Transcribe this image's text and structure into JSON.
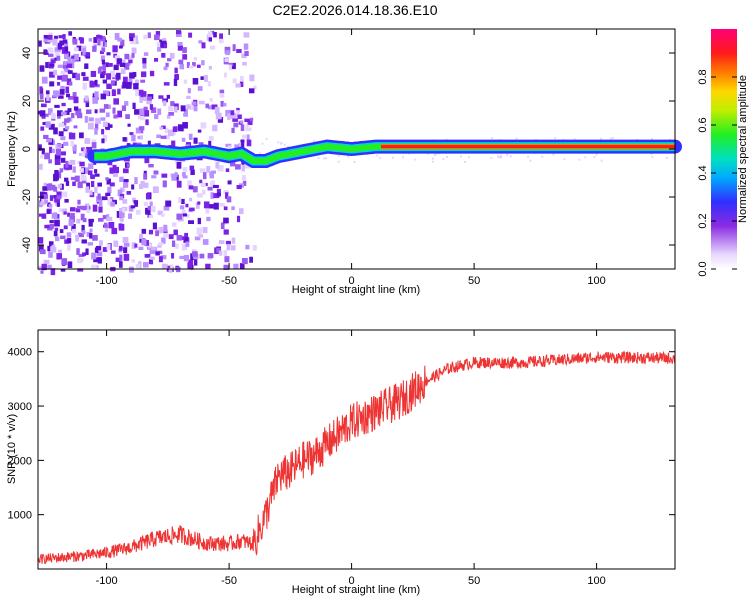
{
  "chart_data": [
    {
      "type": "heatmap",
      "title": "C2E2.2026.014.18.36.E10",
      "xlabel": "Height of straight line (km)",
      "ylabel": "Frequency (Hz)",
      "xlim": [
        -128,
        132
      ],
      "ylim": [
        -50,
        50
      ],
      "xticks": [
        -100,
        -50,
        0,
        50,
        100
      ],
      "xtick_labels": [
        "-100",
        "-50",
        "0",
        "50",
        "100"
      ],
      "yticks": [
        -40,
        -20,
        0,
        20,
        40
      ],
      "ytick_labels": [
        "-40",
        "-20",
        "0",
        "20",
        "40"
      ],
      "colorbar": {
        "label": "Normalized spectral amplitude",
        "range": [
          0,
          1
        ],
        "ticks": [
          0.0,
          0.2,
          0.4,
          0.6,
          0.8
        ],
        "tick_labels": [
          "0.0",
          "0.2",
          "0.4",
          "0.6",
          "0.8"
        ]
      },
      "ridge": {
        "description_points_x": [
          -100,
          -90,
          -80,
          -70,
          -60,
          -50,
          -45,
          -40,
          -35,
          -30,
          -25,
          -20,
          -15,
          -10,
          0,
          10,
          50,
          100,
          132
        ],
        "description_points_y": [
          -3,
          -1,
          -1,
          -2,
          -1,
          -3,
          -2,
          -5,
          -5,
          -3,
          -2,
          -1,
          0,
          1,
          0,
          1,
          1,
          1,
          1
        ]
      },
      "noise_region_x": [
        -128,
        -40
      ]
    },
    {
      "type": "line",
      "title": "",
      "xlabel": "Height of straight line (km)",
      "ylabel": "SNR (10 * v/v)",
      "xlim": [
        -128,
        132
      ],
      "ylim": [
        0,
        4400
      ],
      "xticks": [
        -100,
        -50,
        0,
        50,
        100
      ],
      "xtick_labels": [
        "-100",
        "-50",
        "0",
        "50",
        "100"
      ],
      "yticks": [
        1000,
        2000,
        3000,
        4000
      ],
      "ytick_labels": [
        "1000",
        "2000",
        "3000",
        "4000"
      ],
      "series": [
        {
          "name": "SNR",
          "color": "#ee3333",
          "trend_x": [
            -128,
            -110,
            -100,
            -90,
            -80,
            -70,
            -60,
            -50,
            -45,
            -40,
            -35,
            -30,
            -25,
            -20,
            -15,
            -10,
            -5,
            0,
            10,
            20,
            30,
            40,
            50,
            70,
            100,
            132
          ],
          "trend_y": [
            180,
            240,
            300,
            400,
            560,
            640,
            480,
            460,
            520,
            460,
            1000,
            1700,
            1800,
            2000,
            2100,
            2300,
            2500,
            2700,
            2900,
            3100,
            3450,
            3700,
            3800,
            3800,
            3900,
            3880
          ]
        }
      ]
    }
  ],
  "colors": {
    "axis": "#000000",
    "line": "#ee3333"
  }
}
